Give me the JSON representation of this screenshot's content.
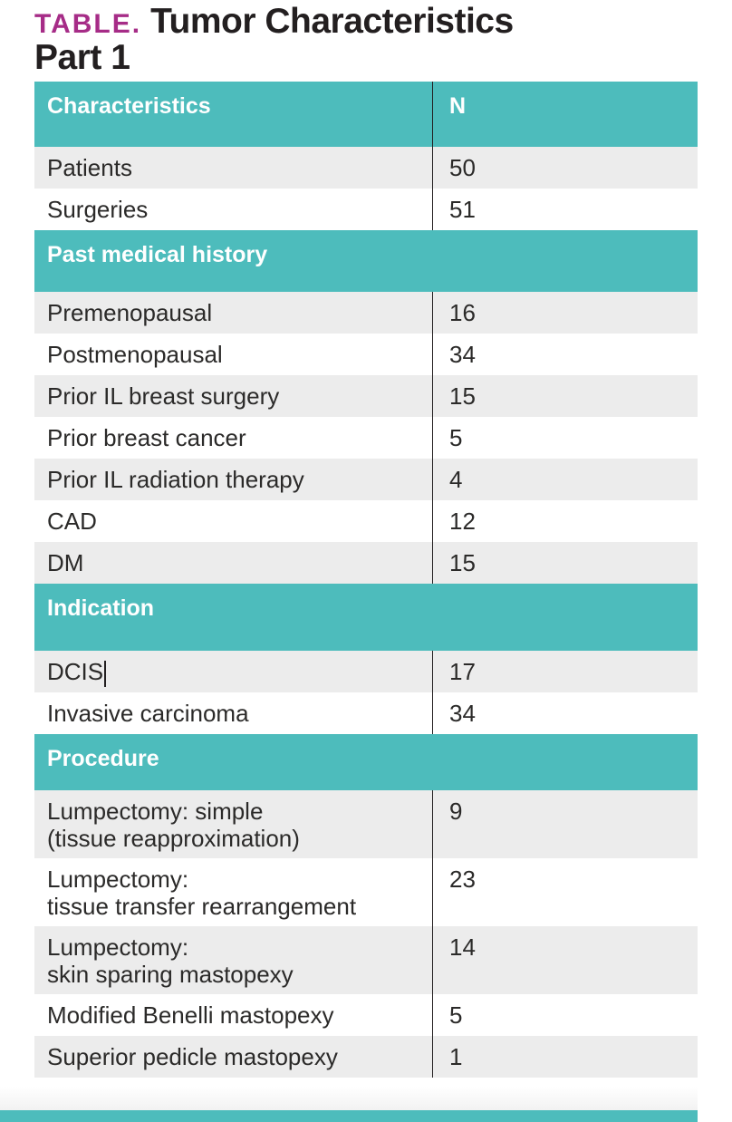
{
  "page": {
    "kicker": "TABLE.",
    "title_line1": "Tumor Characteristics",
    "title_line2": "Part 1"
  },
  "table": {
    "columns": [
      {
        "label": "Characteristics"
      },
      {
        "label": "N"
      }
    ],
    "sections": [
      {
        "header": null,
        "rows": [
          {
            "label": "Patients",
            "value": "50"
          },
          {
            "label": "Surgeries",
            "value": "51"
          }
        ]
      },
      {
        "header": "Past medical history",
        "rows": [
          {
            "label": "Premenopausal",
            "value": "16"
          },
          {
            "label": "Postmenopausal",
            "value": "34"
          },
          {
            "label": "Prior IL breast surgery",
            "value": "15"
          },
          {
            "label": "Prior breast cancer",
            "value": "5"
          },
          {
            "label": "Prior IL radiation therapy",
            "value": "4"
          },
          {
            "label": "CAD",
            "value": "12"
          },
          {
            "label": "DM",
            "value": "15"
          }
        ]
      },
      {
        "header": "Indication",
        "rows": [
          {
            "label": "DCIS",
            "value": "17",
            "caret": true
          },
          {
            "label": "Invasive carcinoma",
            "value": "34"
          }
        ]
      },
      {
        "header": "Procedure",
        "rows": [
          {
            "label": "Lumpectomy: simple\n(tissue reapproximation)",
            "value": "9"
          },
          {
            "label": "Lumpectomy:\ntissue transfer rearrangement",
            "value": "23"
          },
          {
            "label": "Lumpectomy:\nskin sparing mastopexy",
            "value": "14"
          },
          {
            "label": "Modified Benelli mastopexy",
            "value": "5"
          },
          {
            "label": "Superior pedicle mastopexy",
            "value": "1"
          }
        ]
      }
    ]
  },
  "colors": {
    "teal": "#4dbcbc",
    "row_gray": "#ececec",
    "magenta": "#a62c87",
    "text": "#2b2a29",
    "divider": "#231f20"
  }
}
